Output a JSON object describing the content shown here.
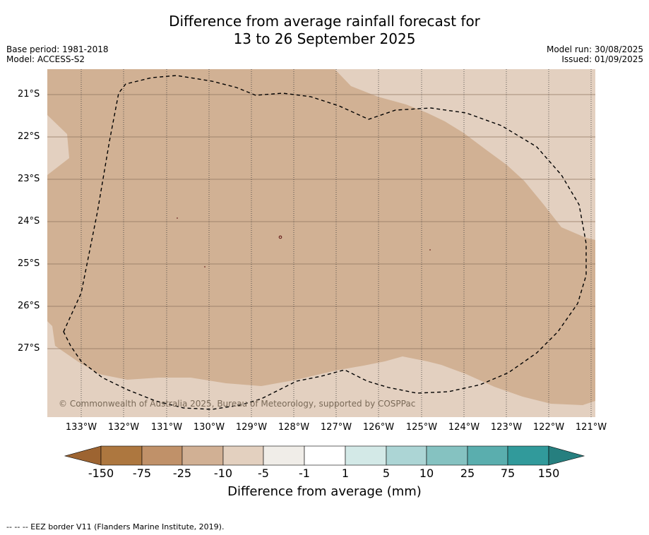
{
  "title": {
    "line1": "Difference from average rainfall forecast for",
    "line2": "13 to 26 September 2025"
  },
  "meta": {
    "base_period": "Base period: 1981-2018",
    "model": "Model: ACCESS-S2",
    "model_run": "Model run: 30/08/2025",
    "issued": "Issued: 01/09/2025"
  },
  "map": {
    "latitude_labels": [
      "21°S",
      "22°S",
      "23°S",
      "24°S",
      "25°S",
      "26°S",
      "27°S"
    ],
    "longitude_labels": [
      "133°W",
      "132°W",
      "131°W",
      "130°W",
      "129°W",
      "128°W",
      "127°W",
      "126°W",
      "125°W",
      "124°W",
      "123°W",
      "122°W",
      "121°W"
    ],
    "copyright": "© Commonwealth of Australia 2025, Bureau of Meteorology, supported by COSPPac",
    "colors": {
      "minus_25_to_minus_10": "#d1b194",
      "minus_10_to_minus_5": "#e3d0c0"
    }
  },
  "colorbar": {
    "title": "Difference from average (mm)",
    "ticks": [
      "-150",
      "-75",
      "-25",
      "-10",
      "-5",
      "-1",
      "1",
      "5",
      "10",
      "25",
      "75",
      "150"
    ],
    "colors": [
      "#ad773f",
      "#c09169",
      "#d1b094",
      "#e3d0bf",
      "#f0ede8",
      "#ffffff",
      "#d3e9e7",
      "#acd5d5",
      "#85c2c1",
      "#5aaeae",
      "#319a9b"
    ],
    "extend_low_color": "#9d6431",
    "extend_high_color": "#267f7f"
  },
  "footer": {
    "legend": "--  --  -- EEZ border V11 (Flanders Marine Institute, 2019)."
  }
}
